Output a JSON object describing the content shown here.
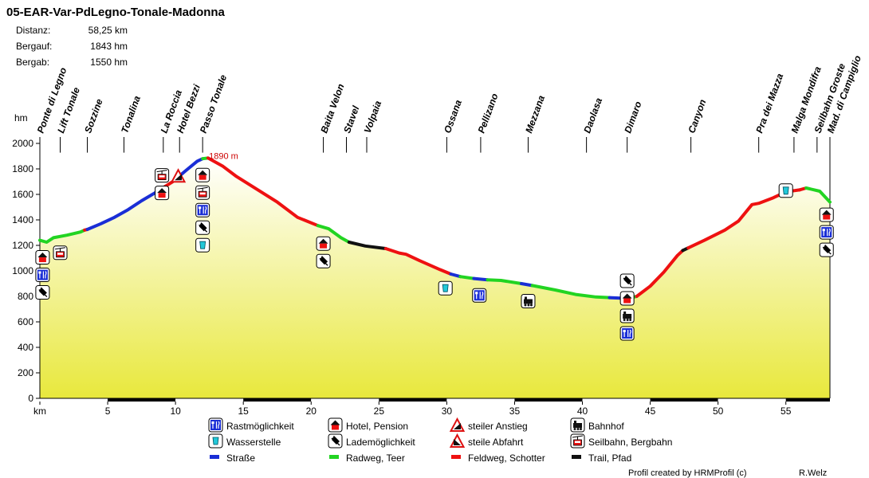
{
  "title": "05-EAR-Var-PdLegno-Tonale-Madonna",
  "stats": [
    {
      "label": "Distanz:",
      "value": "58,25 km"
    },
    {
      "label": "Bergauf:",
      "value": "1843 hm"
    },
    {
      "label": "Bergab:",
      "value": "1550 hm"
    }
  ],
  "chart_data": {
    "type": "area",
    "title": "05-EAR-Var-PdLegno-Tonale-Madonna",
    "xlabel": "km",
    "ylabel": "hm",
    "xlim": [
      0,
      58.25
    ],
    "ylim": [
      0,
      2000
    ],
    "x_ticks": [
      0,
      5,
      10,
      15,
      20,
      25,
      30,
      35,
      40,
      45,
      50,
      55
    ],
    "x_tick_labels": [
      "km",
      "5",
      "10",
      "15",
      "20",
      "25",
      "30",
      "35",
      "40",
      "45",
      "50",
      "55"
    ],
    "y_ticks": [
      0,
      200,
      400,
      600,
      800,
      1000,
      1200,
      1400,
      1600,
      1800,
      2000
    ],
    "peak_label": {
      "km": 12,
      "elevation": 1890,
      "text": "1890 m"
    },
    "surface_colors": {
      "road": "#1a2ed6",
      "bike": "#22d422",
      "gravel": "#ee1111",
      "trail": "#111111"
    },
    "segments": [
      {
        "surface": "bike",
        "points": [
          [
            0,
            1240
          ],
          [
            0.5,
            1225
          ],
          [
            1,
            1260
          ],
          [
            2,
            1280
          ],
          [
            3,
            1305
          ],
          [
            3.3,
            1320
          ]
        ]
      },
      {
        "surface": "gravel",
        "points": [
          [
            3.3,
            1320
          ],
          [
            3.5,
            1325
          ]
        ]
      },
      {
        "surface": "road",
        "points": [
          [
            3.5,
            1325
          ],
          [
            4.5,
            1370
          ],
          [
            5.5,
            1420
          ],
          [
            6.5,
            1480
          ],
          [
            7.5,
            1550
          ],
          [
            8.3,
            1600
          ],
          [
            8.7,
            1625
          ],
          [
            9.2,
            1660
          ]
        ]
      },
      {
        "surface": "gravel",
        "points": [
          [
            9.2,
            1660
          ],
          [
            9.8,
            1700
          ],
          [
            10.3,
            1745
          ]
        ]
      },
      {
        "surface": "road",
        "points": [
          [
            10.3,
            1745
          ],
          [
            10.8,
            1790
          ],
          [
            11.6,
            1860
          ],
          [
            12,
            1880
          ]
        ]
      },
      {
        "surface": "bike",
        "points": [
          [
            12,
            1880
          ],
          [
            12.4,
            1885
          ]
        ]
      },
      {
        "surface": "gravel",
        "points": [
          [
            12.4,
            1885
          ],
          [
            13.5,
            1820
          ],
          [
            14.5,
            1740
          ],
          [
            16,
            1640
          ],
          [
            17.5,
            1540
          ],
          [
            19,
            1420
          ],
          [
            20.5,
            1355
          ]
        ]
      },
      {
        "surface": "bike",
        "points": [
          [
            20.5,
            1355
          ],
          [
            21.3,
            1330
          ],
          [
            22.2,
            1260
          ],
          [
            22.8,
            1225
          ]
        ]
      },
      {
        "surface": "trail",
        "points": [
          [
            22.8,
            1225
          ],
          [
            24,
            1195
          ],
          [
            25.5,
            1175
          ]
        ]
      },
      {
        "surface": "gravel",
        "points": [
          [
            25.5,
            1175
          ],
          [
            26.5,
            1140
          ],
          [
            27,
            1130
          ],
          [
            28,
            1080
          ],
          [
            29.5,
            1010
          ],
          [
            30.3,
            975
          ]
        ]
      },
      {
        "surface": "road",
        "points": [
          [
            30.3,
            975
          ],
          [
            31,
            955
          ]
        ]
      },
      {
        "surface": "bike",
        "points": [
          [
            31,
            955
          ],
          [
            32,
            940
          ]
        ]
      },
      {
        "surface": "road",
        "points": [
          [
            32,
            940
          ],
          [
            33,
            930
          ]
        ]
      },
      {
        "surface": "bike",
        "points": [
          [
            33,
            930
          ],
          [
            34,
            925
          ],
          [
            35.5,
            900
          ]
        ]
      },
      {
        "surface": "road",
        "points": [
          [
            35.5,
            900
          ],
          [
            36.3,
            885
          ]
        ]
      },
      {
        "surface": "bike",
        "points": [
          [
            36.3,
            885
          ],
          [
            38,
            850
          ],
          [
            39.5,
            815
          ],
          [
            41,
            795
          ],
          [
            42,
            790
          ]
        ]
      },
      {
        "surface": "road",
        "points": [
          [
            42,
            790
          ],
          [
            43,
            785
          ],
          [
            43.6,
            790
          ]
        ]
      },
      {
        "surface": "bike",
        "points": [
          [
            43.6,
            790
          ],
          [
            44,
            800
          ]
        ]
      },
      {
        "surface": "gravel",
        "points": [
          [
            44,
            800
          ],
          [
            45,
            880
          ],
          [
            46,
            990
          ],
          [
            47,
            1120
          ],
          [
            47.4,
            1160
          ]
        ]
      },
      {
        "surface": "trail",
        "points": [
          [
            47.4,
            1160
          ],
          [
            47.8,
            1180
          ]
        ]
      },
      {
        "surface": "gravel",
        "points": [
          [
            47.8,
            1180
          ],
          [
            49,
            1240
          ],
          [
            50.5,
            1320
          ],
          [
            51.5,
            1390
          ],
          [
            52.5,
            1520
          ],
          [
            53,
            1530
          ],
          [
            54,
            1570
          ],
          [
            55,
            1620
          ],
          [
            56,
            1635
          ]
        ]
      },
      {
        "surface": "gravel",
        "points": [
          [
            56,
            1635
          ],
          [
            56.5,
            1650
          ]
        ]
      },
      {
        "surface": "bike",
        "points": [
          [
            56.5,
            1650
          ],
          [
            57.5,
            1625
          ],
          [
            58.25,
            1540
          ]
        ]
      }
    ],
    "places": [
      {
        "name": "Ponte di Legno",
        "km": 0
      },
      {
        "name": "Lift Tonale",
        "km": 1.5
      },
      {
        "name": "Sozzine",
        "km": 3.5
      },
      {
        "name": "Tonalina",
        "km": 6.2
      },
      {
        "name": "La Roccia",
        "km": 9.1
      },
      {
        "name": "Hotel Bezzi",
        "km": 10.3
      },
      {
        "name": "Passo Tonale",
        "km": 12
      },
      {
        "name": "Baita Velon",
        "km": 20.9
      },
      {
        "name": "Stavel",
        "km": 22.6
      },
      {
        "name": "Volpaia",
        "km": 24.1
      },
      {
        "name": "Ossana",
        "km": 30
      },
      {
        "name": "Pellizano",
        "km": 32.5
      },
      {
        "name": "Mezzana",
        "km": 36
      },
      {
        "name": "Daolasa",
        "km": 40.3
      },
      {
        "name": "Dimaro",
        "km": 43.3
      },
      {
        "name": "Canyon",
        "km": 48
      },
      {
        "name": "Pra dei Mazza",
        "km": 53
      },
      {
        "name": "Malga Mondifra",
        "km": 55.6
      },
      {
        "name": "Seilbahn Groste",
        "km": 57.3
      },
      {
        "name": "Mad. di Campiglio",
        "km": 58.25
      }
    ],
    "legend": [
      {
        "label": "Rastmöglichkeit",
        "icon": "fork-knife-icon"
      },
      {
        "label": "Hotel, Pension",
        "icon": "house-icon"
      },
      {
        "label": "steiler Anstieg",
        "icon": "steep-ascent-icon"
      },
      {
        "label": "Bahnhof",
        "icon": "train-icon"
      },
      {
        "label": "Wasserstelle",
        "icon": "water-cup-icon"
      },
      {
        "label": "Lademöglichkeit",
        "icon": "charging-plug-icon"
      },
      {
        "label": "steile Abfahrt",
        "icon": "steep-descent-icon"
      },
      {
        "label": "Seilbahn, Bergbahn",
        "icon": "cable-car-icon"
      },
      {
        "label": "Straße",
        "icon": "road-swatch",
        "surface": "road"
      },
      {
        "label": "Radweg, Teer",
        "icon": "bike-swatch",
        "surface": "bike"
      },
      {
        "label": "Feldweg, Schotter",
        "icon": "gravel-swatch",
        "surface": "gravel"
      },
      {
        "label": "Trail, Pfad",
        "icon": "trail-swatch",
        "surface": "trail"
      }
    ],
    "credit": "Profil created by HRMProfil (c)",
    "author": "R.Welz",
    "poi_markers": [
      {
        "km": 0.2,
        "icons": [
          "house-icon",
          "fork-knife-icon",
          "charging-plug-icon"
        ]
      },
      {
        "km": 1.5,
        "icons": [
          "cable-car-icon"
        ]
      },
      {
        "km": 9.0,
        "icons": [
          "cable-car-icon",
          "house-icon"
        ]
      },
      {
        "km": 10.2,
        "icons": [
          "steep-ascent-icon"
        ]
      },
      {
        "km": 12.0,
        "icons": [
          "house-icon",
          "cable-car-icon",
          "fork-knife-icon",
          "charging-plug-icon",
          "water-cup-icon"
        ]
      },
      {
        "km": 20.9,
        "icons": [
          "house-icon",
          "charging-plug-icon"
        ]
      },
      {
        "km": 29.9,
        "icons": [
          "water-cup-icon"
        ]
      },
      {
        "km": 32.4,
        "icons": [
          "fork-knife-icon"
        ]
      },
      {
        "km": 36.0,
        "icons": [
          "train-icon"
        ]
      },
      {
        "km": 43.3,
        "icons": [
          "charging-plug-icon",
          "house-icon",
          "train-icon",
          "fork-knife-icon"
        ]
      },
      {
        "km": 55.0,
        "icons": [
          "water-cup-icon"
        ]
      },
      {
        "km": 58.0,
        "icons": [
          "house-icon",
          "fork-knife-icon",
          "charging-plug-icon"
        ]
      }
    ]
  }
}
